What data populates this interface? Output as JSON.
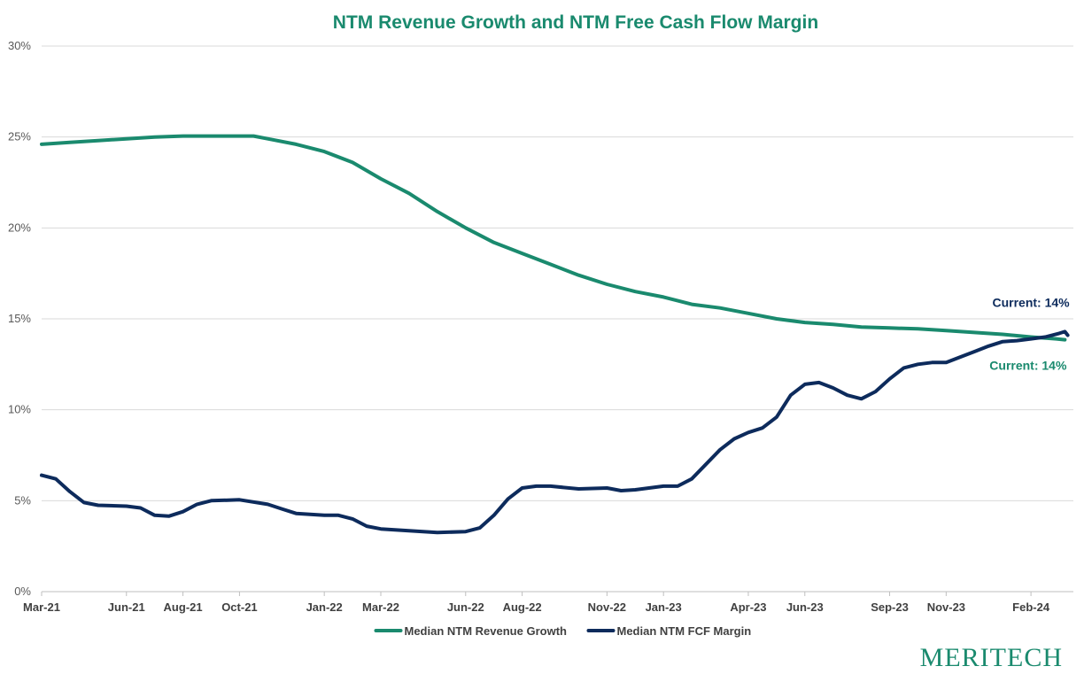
{
  "brand": {
    "name": "Meritech",
    "color": "#1a8a6e"
  },
  "chart_data": {
    "type": "line",
    "title": "NTM Revenue Growth and NTM Free Cash Flow Margin",
    "xlabel": "",
    "ylabel": "",
    "ylim": [
      0,
      30
    ],
    "yticks": [
      0,
      5,
      10,
      15,
      20,
      25,
      30
    ],
    "y_tick_labels": [
      "0%",
      "5%",
      "10%",
      "15%",
      "20%",
      "25%",
      "30%"
    ],
    "x_range_months": [
      0,
      36.5
    ],
    "x_tick_months": [
      0,
      3,
      5,
      7,
      10,
      12,
      15,
      17,
      20,
      22,
      25,
      27,
      30,
      32,
      35
    ],
    "x_tick_labels": [
      "Mar-21",
      "Jun-21",
      "Aug-21",
      "Oct-21",
      "Jan-22",
      "Mar-22",
      "Jun-22",
      "Aug-22",
      "Nov-22",
      "Jan-23",
      "Apr-23",
      "Jun-23",
      "Sep-23",
      "Nov-23",
      "Feb-24"
    ],
    "grid": true,
    "legend_position": "bottom-center",
    "series": [
      {
        "name": "Median NTM Revenue Growth",
        "color": "#1a8a6e",
        "points": [
          [
            0,
            24.6
          ],
          [
            1,
            24.7
          ],
          [
            2,
            24.8
          ],
          [
            3,
            24.9
          ],
          [
            4,
            25.0
          ],
          [
            5,
            25.05
          ],
          [
            6,
            25.05
          ],
          [
            7,
            25.05
          ],
          [
            7.5,
            25.05
          ],
          [
            8,
            24.9
          ],
          [
            9,
            24.6
          ],
          [
            10,
            24.2
          ],
          [
            11,
            23.6
          ],
          [
            12,
            22.7
          ],
          [
            13,
            21.9
          ],
          [
            14,
            20.9
          ],
          [
            15,
            20.0
          ],
          [
            16,
            19.2
          ],
          [
            17,
            18.6
          ],
          [
            18,
            18.0
          ],
          [
            19,
            17.4
          ],
          [
            20,
            16.9
          ],
          [
            21,
            16.5
          ],
          [
            22,
            16.2
          ],
          [
            23,
            15.8
          ],
          [
            24,
            15.6
          ],
          [
            25,
            15.3
          ],
          [
            26,
            15.0
          ],
          [
            27,
            14.8
          ],
          [
            28,
            14.7
          ],
          [
            29,
            14.55
          ],
          [
            30,
            14.5
          ],
          [
            31,
            14.45
          ],
          [
            32,
            14.35
          ],
          [
            33,
            14.25
          ],
          [
            34,
            14.15
          ],
          [
            35,
            14.0
          ],
          [
            35.9,
            13.9
          ],
          [
            36.2,
            13.85
          ]
        ]
      },
      {
        "name": "Median NTM FCF Margin",
        "color": "#0d2b5c",
        "points": [
          [
            0,
            6.4
          ],
          [
            0.5,
            6.2
          ],
          [
            1,
            5.5
          ],
          [
            1.5,
            4.9
          ],
          [
            2,
            4.75
          ],
          [
            3,
            4.7
          ],
          [
            3.5,
            4.6
          ],
          [
            4,
            4.2
          ],
          [
            4.5,
            4.15
          ],
          [
            5,
            4.4
          ],
          [
            5.5,
            4.8
          ],
          [
            6,
            5.0
          ],
          [
            7,
            5.05
          ],
          [
            8,
            4.8
          ],
          [
            8.5,
            4.55
          ],
          [
            9,
            4.3
          ],
          [
            10,
            4.2
          ],
          [
            10.5,
            4.2
          ],
          [
            11,
            4.0
          ],
          [
            11.5,
            3.6
          ],
          [
            12,
            3.45
          ],
          [
            13,
            3.35
          ],
          [
            14,
            3.25
          ],
          [
            15,
            3.3
          ],
          [
            15.5,
            3.5
          ],
          [
            16,
            4.2
          ],
          [
            16.5,
            5.1
          ],
          [
            17,
            5.7
          ],
          [
            17.5,
            5.8
          ],
          [
            18,
            5.8
          ],
          [
            19,
            5.65
          ],
          [
            20,
            5.7
          ],
          [
            20.5,
            5.55
          ],
          [
            21,
            5.6
          ],
          [
            22,
            5.8
          ],
          [
            22.5,
            5.8
          ],
          [
            23,
            6.2
          ],
          [
            24,
            7.8
          ],
          [
            24.5,
            8.4
          ],
          [
            25,
            8.75
          ],
          [
            25.5,
            9.0
          ],
          [
            26,
            9.6
          ],
          [
            26.5,
            10.8
          ],
          [
            27,
            11.4
          ],
          [
            27.5,
            11.5
          ],
          [
            28,
            11.2
          ],
          [
            28.5,
            10.8
          ],
          [
            29,
            10.6
          ],
          [
            29.5,
            11.0
          ],
          [
            30,
            11.7
          ],
          [
            30.5,
            12.3
          ],
          [
            31,
            12.5
          ],
          [
            31.5,
            12.6
          ],
          [
            32,
            12.6
          ],
          [
            32.5,
            12.9
          ],
          [
            33,
            13.2
          ],
          [
            33.5,
            13.5
          ],
          [
            34,
            13.75
          ],
          [
            34.5,
            13.8
          ],
          [
            35,
            13.9
          ],
          [
            35.5,
            14.0
          ],
          [
            36,
            14.2
          ],
          [
            36.2,
            14.3
          ],
          [
            36.3,
            14.1
          ]
        ]
      }
    ],
    "annotations": [
      {
        "text": "Current: 14%",
        "series": "Median NTM FCF Margin",
        "color": "#0d2b5c",
        "placement": "above"
      },
      {
        "text": "Current: 14%",
        "series": "Median NTM Revenue Growth",
        "color": "#1a8a6e",
        "placement": "below"
      }
    ]
  }
}
